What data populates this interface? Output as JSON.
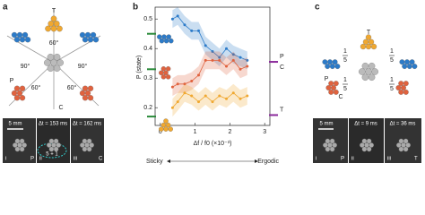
{
  "panel_a": {
    "label": "a",
    "texts": {
      "t": "T",
      "p": "P",
      "c": "C",
      "ang_top": "60°",
      "ang_left": "90°",
      "ang_right": "90°",
      "ang_bl": "60°",
      "ang_br": "60°"
    },
    "images": {
      "scale": "5 mm",
      "dt2": "Δt = 153 ms",
      "dt3": "Δt = 162 ms",
      "i": "i",
      "ii": "ii",
      "iii": "iii",
      "p": "P",
      "c": "C",
      "count": "5 + 1"
    }
  },
  "chart_data": {
    "type": "line",
    "label": "b",
    "xlabel": "Δf / f0 (×10⁻³)",
    "ylabel": "P (state)",
    "xlim": [
      -0.15,
      3.15
    ],
    "xticks": [
      0,
      1,
      2,
      3
    ],
    "ylim": [
      0.14,
      0.54
    ],
    "yticks": [
      0.2,
      0.3,
      0.4,
      0.5
    ],
    "x": [
      0.35,
      0.5,
      0.7,
      0.9,
      1.1,
      1.3,
      1.5,
      1.7,
      1.9,
      2.1,
      2.3,
      2.5
    ],
    "series": [
      {
        "name": "P",
        "color": "#2c7bc9",
        "values": [
          0.5,
          0.51,
          0.48,
          0.46,
          0.46,
          0.41,
          0.39,
          0.37,
          0.4,
          0.38,
          0.37,
          0.36
        ],
        "lower": [
          0.47,
          0.48,
          0.45,
          0.43,
          0.43,
          0.38,
          0.36,
          0.34,
          0.37,
          0.35,
          0.34,
          0.33
        ],
        "upper": [
          0.53,
          0.54,
          0.51,
          0.49,
          0.49,
          0.44,
          0.42,
          0.4,
          0.43,
          0.41,
          0.4,
          0.39
        ]
      },
      {
        "name": "C",
        "color": "#e0623e",
        "values": [
          0.27,
          0.28,
          0.28,
          0.29,
          0.31,
          0.36,
          0.36,
          0.36,
          0.34,
          0.36,
          0.33,
          0.34
        ],
        "lower": [
          0.24,
          0.25,
          0.25,
          0.26,
          0.28,
          0.33,
          0.33,
          0.33,
          0.31,
          0.33,
          0.3,
          0.31
        ],
        "upper": [
          0.3,
          0.31,
          0.31,
          0.32,
          0.34,
          0.39,
          0.39,
          0.39,
          0.37,
          0.39,
          0.36,
          0.37
        ]
      },
      {
        "name": "T",
        "color": "#f0a830",
        "values": [
          0.2,
          0.22,
          0.25,
          0.24,
          0.22,
          0.24,
          0.22,
          0.24,
          0.23,
          0.25,
          0.23,
          0.24
        ],
        "lower": [
          0.17,
          0.19,
          0.22,
          0.21,
          0.19,
          0.21,
          0.19,
          0.21,
          0.2,
          0.22,
          0.2,
          0.21
        ],
        "upper": [
          0.23,
          0.25,
          0.28,
          0.27,
          0.25,
          0.27,
          0.25,
          0.27,
          0.26,
          0.28,
          0.26,
          0.27
        ]
      }
    ],
    "left_markers": {
      "color": "#2a8a3a",
      "values": [
        0.45,
        0.33,
        0.17
      ]
    },
    "right_markers": {
      "color": "#8b2a9b",
      "values": [
        0.355,
        0.175
      ]
    },
    "sticky": "Sticky",
    "ergodic": "Ergodic"
  },
  "panel_c": {
    "label": "c",
    "texts": {
      "t": "T",
      "p": "P",
      "c": "C"
    },
    "fractions": [
      {
        "num": "1",
        "den": "5"
      },
      {
        "num": "1",
        "den": "5"
      },
      {
        "num": "1",
        "den": "5"
      },
      {
        "num": "1",
        "den": "5"
      }
    ],
    "images": {
      "scale": "5 mm",
      "dt2": "Δt = 9 ms",
      "dt3": "Δt = 36 ms",
      "i": "i",
      "ii": "ii",
      "iii": "iii",
      "p": "P",
      "t": "T"
    }
  }
}
